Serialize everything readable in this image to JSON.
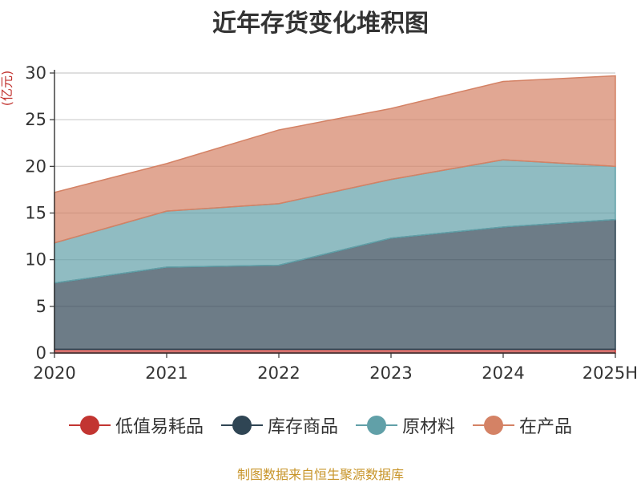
{
  "title": "近年存货变化堆积图",
  "source_note": "制图数据来自恒生聚源数据库",
  "chart_data": {
    "type": "area",
    "stacked": true,
    "title": "近年存货变化堆积图",
    "ylabel": "(亿元)",
    "xlabel": "",
    "categories": [
      "2020",
      "2021",
      "2022",
      "2023",
      "2024",
      "2025H"
    ],
    "ylim": [
      0,
      30
    ],
    "yticks": [
      0,
      5,
      10,
      15,
      20,
      25,
      30
    ],
    "grid": true,
    "legend_position": "bottom",
    "series": [
      {
        "name": "低值易耗品",
        "color": "#c23531",
        "values": [
          0.4,
          0.4,
          0.4,
          0.4,
          0.4,
          0.4
        ]
      },
      {
        "name": "库存商品",
        "color": "#2f4554",
        "values": [
          7.1,
          8.8,
          9.0,
          11.9,
          13.1,
          13.9
        ]
      },
      {
        "name": "原材料",
        "color": "#61a0a8",
        "values": [
          4.3,
          6.0,
          6.6,
          6.3,
          7.2,
          5.7
        ]
      },
      {
        "name": "在产品",
        "color": "#d48265",
        "values": [
          5.4,
          5.1,
          7.9,
          7.6,
          8.4,
          9.7
        ]
      }
    ]
  }
}
